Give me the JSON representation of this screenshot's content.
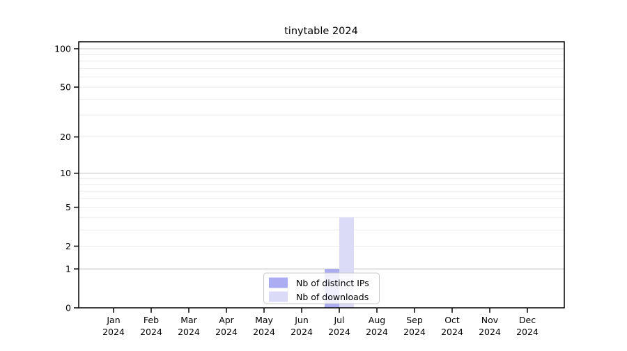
{
  "chart_data": {
    "type": "bar",
    "title": "tinytable 2024",
    "categories": [
      "Jan",
      "Feb",
      "Mar",
      "Apr",
      "May",
      "Jun",
      "Jul",
      "Aug",
      "Sep",
      "Oct",
      "Nov",
      "Dec"
    ],
    "year_label": "2024",
    "series": [
      {
        "name": "Nb of distinct IPs",
        "color": "#acacf2",
        "values": [
          0,
          0,
          0,
          0,
          0,
          0,
          1,
          0,
          0,
          0,
          0,
          0
        ]
      },
      {
        "name": "Nb of downloads",
        "color": "#dbdbf8",
        "values": [
          0,
          0,
          0,
          0,
          0,
          0,
          4,
          0,
          0,
          0,
          0,
          0
        ]
      }
    ],
    "yticks": [
      0,
      1,
      2,
      5,
      10,
      20,
      50,
      100
    ],
    "y_scale": "log1p",
    "ylim": [
      0,
      112
    ],
    "grid": "horizontal",
    "grid_major_values": [
      1,
      10,
      100
    ],
    "grid_minor_values": [
      2,
      3,
      4,
      5,
      6,
      7,
      8,
      9,
      20,
      30,
      40,
      50,
      60,
      70,
      80,
      90
    ],
    "legend_position": "bottom-center",
    "legend_labels": [
      "Nb of distinct IPs",
      "Nb of downloads"
    ],
    "colors": {
      "spine": "#000000",
      "grid_major": "#c3c3c3",
      "grid_minor": "#ececec",
      "legend_border": "#c9c9c9",
      "legend_background": "#ffffff"
    }
  }
}
